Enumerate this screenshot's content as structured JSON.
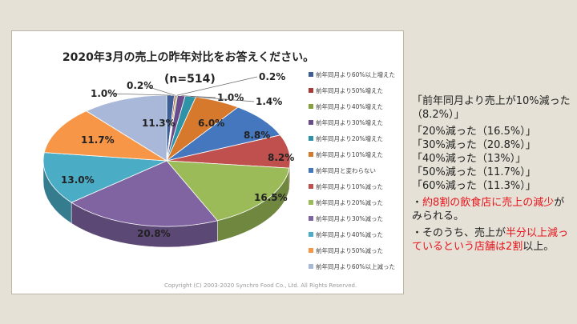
{
  "chart_data": {
    "type": "pie",
    "title": "2020年3月の売上の昨年対比をお答えください。",
    "subtitle": "(n=514)",
    "categories": [
      "前年同月より60%以上増えた",
      "前年同月より50%増えた",
      "前年同月より40%増えた",
      "前年同月より30%増えた",
      "前年同月より20%増えた",
      "前年同月より10%増えた",
      "前年同月と変わらない",
      "前年同月より10%減った",
      "前年同月より20%減った",
      "前年同月より30%減った",
      "前年同月より40%減った",
      "前年同月より50%減った",
      "前年同月より60%以上減った"
    ],
    "values": [
      1.0,
      0.2,
      0.2,
      1.0,
      1.4,
      6.0,
      8.8,
      8.2,
      16.5,
      20.8,
      13.0,
      11.7,
      11.3
    ],
    "data_labels": [
      "1.0%",
      "0.2%",
      "0.2%",
      "1.0%",
      "1.4%",
      "6.0%",
      "8.8%",
      "8.2%",
      "16.5%",
      "20.8%",
      "13.0%",
      "11.7%",
      "11.3%"
    ],
    "colors": [
      "#3d5f96",
      "#a83a38",
      "#87a03e",
      "#6a4b8c",
      "#2f93a8",
      "#d6792c",
      "#4577bf",
      "#c0504d",
      "#9bbb59",
      "#8064a2",
      "#4bacc6",
      "#f79646",
      "#a9b8d8"
    ],
    "legend_position": "right",
    "style": "3d-pie"
  },
  "copyright": "Copyright (C) 2003-2020 Synchro Food Co., Ltd. All Rights Reserved.",
  "notes": {
    "line1": "「前年同月より売上が10%減った（8.2%）」",
    "items": [
      "「20%減った（16.5%）」",
      "「30%減った（20.8%）」",
      "「40%減った（13%）」",
      "「50%減った（11.7%）」",
      "「60%減った（11.3%）」"
    ],
    "b1_pre": "・",
    "b1_red": "約8割の飲食店に売上の減少",
    "b1_post": "がみられる。",
    "b2_pre": "・そのうち、売上が",
    "b2_red1": "半分以上減っているという店舗は2割",
    "b2_post": "以上。"
  }
}
